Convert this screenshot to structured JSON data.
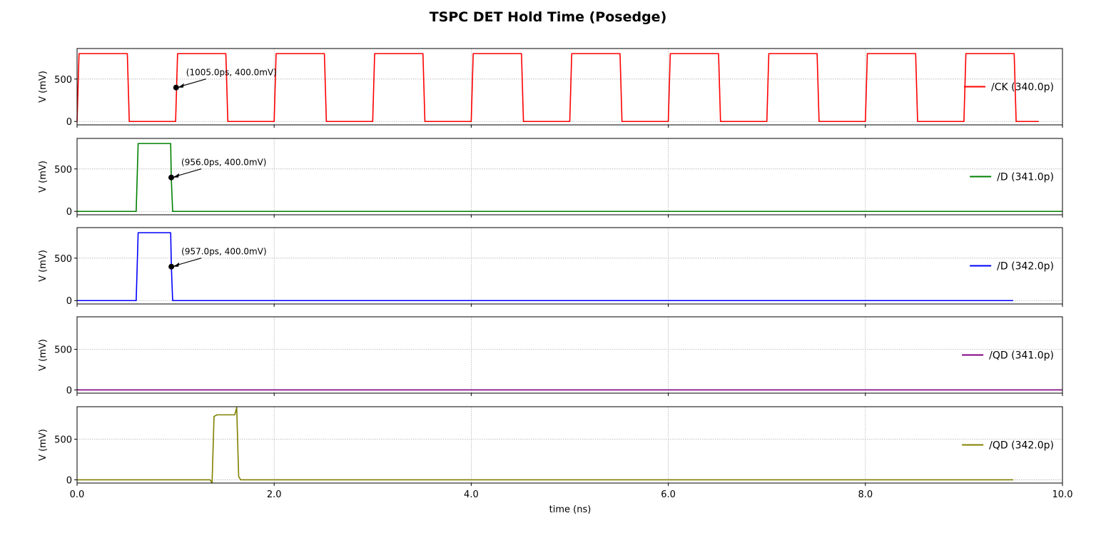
{
  "chart_data": {
    "type": "line",
    "title": "TSPC DET Hold Time (Posedge)",
    "xlabel": "time (ns)",
    "xlim": [
      0,
      10
    ],
    "x_ticks": [
      0,
      2,
      4,
      6,
      8,
      10
    ],
    "x_tick_labels": [
      "0.0",
      "2.0",
      "4.0",
      "6.0",
      "8.0",
      "10.0"
    ],
    "grid": true,
    "legend_position": "right",
    "panels": [
      {
        "ylabel": "V (mV)",
        "ylim": [
          -40,
          860
        ],
        "y_ticks": [
          0,
          500
        ],
        "y_tick_labels": [
          "0",
          "500"
        ],
        "series": [
          {
            "name": "/CK (340.0p)",
            "color": "#ff0000",
            "points": [
              [
                0,
                0
              ],
              [
                0.02,
                800
              ],
              [
                0.51,
                800
              ],
              [
                0.53,
                0
              ],
              [
                1.0,
                0
              ],
              [
                1.01,
                400
              ],
              [
                1.02,
                800
              ],
              [
                1.51,
                800
              ],
              [
                1.53,
                0
              ],
              [
                2.0,
                0
              ],
              [
                2.02,
                800
              ],
              [
                2.51,
                800
              ],
              [
                2.53,
                0
              ],
              [
                3.0,
                0
              ],
              [
                3.02,
                800
              ],
              [
                3.51,
                800
              ],
              [
                3.53,
                0
              ],
              [
                4.0,
                0
              ],
              [
                4.02,
                800
              ],
              [
                4.51,
                800
              ],
              [
                4.53,
                0
              ],
              [
                5.0,
                0
              ],
              [
                5.02,
                800
              ],
              [
                5.51,
                800
              ],
              [
                5.53,
                0
              ],
              [
                6.0,
                0
              ],
              [
                6.02,
                800
              ],
              [
                6.51,
                800
              ],
              [
                6.53,
                0
              ],
              [
                7.0,
                0
              ],
              [
                7.02,
                800
              ],
              [
                7.51,
                800
              ],
              [
                7.53,
                0
              ],
              [
                8.0,
                0
              ],
              [
                8.02,
                800
              ],
              [
                8.51,
                800
              ],
              [
                8.53,
                0
              ],
              [
                9.0,
                0
              ],
              [
                9.02,
                800
              ],
              [
                9.51,
                800
              ],
              [
                9.53,
                0
              ],
              [
                9.76,
                0
              ]
            ]
          }
        ],
        "annotation": {
          "text": "(1005.0ps, 400.0mV)",
          "x": 1.005,
          "y": 400
        }
      },
      {
        "ylabel": "V (mV)",
        "ylim": [
          -40,
          860
        ],
        "y_ticks": [
          0,
          500
        ],
        "y_tick_labels": [
          "0",
          "500"
        ],
        "series": [
          {
            "name": "/D (341.0p)",
            "color": "#008000",
            "points": [
              [
                0,
                0
              ],
              [
                0.6,
                0
              ],
              [
                0.62,
                800
              ],
              [
                0.95,
                800
              ],
              [
                0.956,
                400
              ],
              [
                0.97,
                0
              ],
              [
                10,
                0
              ]
            ]
          }
        ],
        "annotation": {
          "text": "(956.0ps, 400.0mV)",
          "x": 0.956,
          "y": 400
        }
      },
      {
        "ylabel": "V (mV)",
        "ylim": [
          -40,
          860
        ],
        "y_ticks": [
          0,
          500
        ],
        "y_tick_labels": [
          "0",
          "500"
        ],
        "series": [
          {
            "name": "/D (342.0p)",
            "color": "#0000ff",
            "points": [
              [
                0,
                0
              ],
              [
                0.6,
                0
              ],
              [
                0.62,
                800
              ],
              [
                0.95,
                800
              ],
              [
                0.957,
                400
              ],
              [
                0.97,
                0
              ],
              [
                9.5,
                0
              ]
            ]
          }
        ],
        "annotation": {
          "text": "(957.0ps, 400.0mV)",
          "x": 0.957,
          "y": 400
        }
      },
      {
        "ylabel": "V (mV)",
        "ylim": [
          -40,
          900
        ],
        "y_ticks": [
          0,
          500
        ],
        "y_tick_labels": [
          "0",
          "500"
        ],
        "series": [
          {
            "name": "/QD (341.0p)",
            "color": "#800080",
            "points": [
              [
                0,
                0
              ],
              [
                10,
                0
              ]
            ]
          }
        ]
      },
      {
        "ylabel": "V (mV)",
        "ylim": [
          -40,
          900
        ],
        "y_ticks": [
          0,
          500
        ],
        "y_tick_labels": [
          "0",
          "500"
        ],
        "series": [
          {
            "name": "/QD (342.0p)",
            "color": "#808000",
            "points": [
              [
                0,
                0
              ],
              [
                1.35,
                0
              ],
              [
                1.37,
                -40
              ],
              [
                1.39,
                780
              ],
              [
                1.42,
                800
              ],
              [
                1.6,
                800
              ],
              [
                1.62,
                890
              ],
              [
                1.64,
                40
              ],
              [
                1.66,
                0
              ],
              [
                9.5,
                0
              ]
            ]
          }
        ]
      }
    ]
  }
}
